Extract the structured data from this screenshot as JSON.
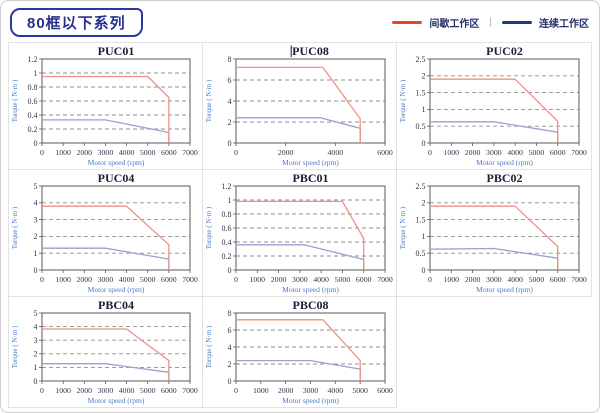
{
  "header": {
    "series_title": "80框以下系列"
  },
  "legend": {
    "intermittent_label": "间歇工作区",
    "separator": "|",
    "continuous_label": "连续工作区",
    "intermittent_color": "#e8462b",
    "continuous_color": "#1e3a78"
  },
  "colors": {
    "curve_red": "#ee9186",
    "curve_blue": "#98a2cc",
    "gridline": "#8f8f8f",
    "plot_border": "#5a5a5a",
    "tick_text": "#33344a",
    "axis_label": "#4a7bc8",
    "title_text": "#1d1d33"
  },
  "axis": {
    "xlabel": "Motor speed (rpm)",
    "ylabel": "Torque ( N·m )"
  },
  "chart_data": [
    {
      "type": "line",
      "title": "PUC01",
      "title_cursor": false,
      "xlabel": "Motor speed (rpm)",
      "ylabel": "Torque ( N·m )",
      "xlim": [
        0,
        7000
      ],
      "xticks": [
        0,
        1000,
        2000,
        3000,
        4000,
        5000,
        6000,
        7000
      ],
      "ylim": [
        0,
        1.2
      ],
      "yticks": [
        0,
        0.2,
        0.4,
        0.6,
        0.8,
        1,
        1.2
      ],
      "series": [
        {
          "name": "间歇工作区",
          "color_key": "curve_red",
          "points": [
            [
              0,
              0.95
            ],
            [
              5000,
              0.95
            ],
            [
              6000,
              0.65
            ],
            [
              6000,
              0
            ]
          ]
        },
        {
          "name": "连续工作区",
          "color_key": "curve_blue",
          "points": [
            [
              0,
              0.33
            ],
            [
              3000,
              0.33
            ],
            [
              6000,
              0.15
            ],
            [
              6000,
              0
            ]
          ]
        }
      ]
    },
    {
      "type": "line",
      "title": "PUC08",
      "title_cursor": true,
      "xlabel": "Motor speed (rpm)",
      "ylabel": "Torque ( N·m )",
      "xlim": [
        0,
        6000
      ],
      "xticks": [
        0,
        2000,
        4000,
        6000
      ],
      "ylim": [
        0,
        8
      ],
      "yticks": [
        0,
        2,
        4,
        6,
        8
      ],
      "series": [
        {
          "name": "间歇工作区",
          "color_key": "curve_red",
          "points": [
            [
              0,
              7.2
            ],
            [
              3500,
              7.2
            ],
            [
              5000,
              2.3
            ],
            [
              5000,
              0
            ]
          ]
        },
        {
          "name": "连续工作区",
          "color_key": "curve_blue",
          "points": [
            [
              0,
              2.4
            ],
            [
              3400,
              2.4
            ],
            [
              5000,
              1.4
            ],
            [
              5000,
              0
            ]
          ]
        }
      ]
    },
    {
      "type": "line",
      "title": "PUC02",
      "title_cursor": false,
      "xlabel": "Motor speed (rpm)",
      "ylabel": "Torque ( N·m )",
      "xlim": [
        0,
        7000
      ],
      "xticks": [
        0,
        1000,
        2000,
        3000,
        4000,
        5000,
        6000,
        7000
      ],
      "ylim": [
        0,
        2.5
      ],
      "yticks": [
        0,
        0.5,
        1,
        1.5,
        2,
        2.5
      ],
      "series": [
        {
          "name": "间歇工作区",
          "color_key": "curve_red",
          "points": [
            [
              0,
              1.9
            ],
            [
              4000,
              1.9
            ],
            [
              6000,
              0.65
            ],
            [
              6000,
              0
            ]
          ]
        },
        {
          "name": "连续工作区",
          "color_key": "curve_blue",
          "points": [
            [
              0,
              0.63
            ],
            [
              3000,
              0.63
            ],
            [
              6000,
              0.32
            ],
            [
              6000,
              0
            ]
          ]
        }
      ]
    },
    {
      "type": "line",
      "title": "PUC04",
      "title_cursor": false,
      "xlabel": "Motor speed (rpm)",
      "ylabel": "Torque ( N·m )",
      "xlim": [
        0,
        7000
      ],
      "xticks": [
        0,
        1000,
        2000,
        3000,
        4000,
        5000,
        6000,
        7000
      ],
      "ylim": [
        0,
        5
      ],
      "yticks": [
        0,
        1,
        2,
        3,
        4,
        5
      ],
      "series": [
        {
          "name": "间歇工作区",
          "color_key": "curve_red",
          "points": [
            [
              0,
              3.8
            ],
            [
              4000,
              3.8
            ],
            [
              6000,
              1.5
            ],
            [
              6000,
              0
            ]
          ]
        },
        {
          "name": "连续工作区",
          "color_key": "curve_blue",
          "points": [
            [
              0,
              1.3
            ],
            [
              3000,
              1.3
            ],
            [
              6000,
              0.65
            ],
            [
              6000,
              0
            ]
          ]
        }
      ]
    },
    {
      "type": "line",
      "title": "PBC01",
      "title_cursor": false,
      "xlabel": "Motor speed (rpm)",
      "ylabel": "Torque ( N·m )",
      "xlim": [
        0,
        7000
      ],
      "xticks": [
        0,
        1000,
        2000,
        3000,
        4000,
        5000,
        6000,
        7000
      ],
      "ylim": [
        0,
        1.2
      ],
      "yticks": [
        0,
        0.2,
        0.4,
        0.6,
        0.8,
        1,
        1.2
      ],
      "series": [
        {
          "name": "间歇工作区",
          "color_key": "curve_red",
          "points": [
            [
              0,
              0.98
            ],
            [
              5000,
              0.98
            ],
            [
              6000,
              0.45
            ],
            [
              6000,
              0
            ]
          ]
        },
        {
          "name": "连续工作区",
          "color_key": "curve_blue",
          "points": [
            [
              0,
              0.36
            ],
            [
              3200,
              0.36
            ],
            [
              6000,
              0.15
            ],
            [
              6000,
              0
            ]
          ]
        }
      ]
    },
    {
      "type": "line",
      "title": "PBC02",
      "title_cursor": false,
      "xlabel": "Motor speed (rpm)",
      "ylabel": "Torque ( N·m )",
      "xlim": [
        0,
        7000
      ],
      "xticks": [
        0,
        1000,
        2000,
        3000,
        4000,
        5000,
        6000,
        7000
      ],
      "ylim": [
        0,
        2.5
      ],
      "yticks": [
        0,
        0.5,
        1,
        1.5,
        2,
        2.5
      ],
      "series": [
        {
          "name": "间歇工作区",
          "color_key": "curve_red",
          "points": [
            [
              0,
              1.9
            ],
            [
              4000,
              1.9
            ],
            [
              6000,
              0.7
            ],
            [
              6000,
              0
            ]
          ]
        },
        {
          "name": "连续工作区",
          "color_key": "curve_blue",
          "points": [
            [
              0,
              0.62
            ],
            [
              3000,
              0.64
            ],
            [
              6000,
              0.35
            ],
            [
              6000,
              0
            ]
          ]
        }
      ]
    },
    {
      "type": "line",
      "title": "PBC04",
      "title_cursor": false,
      "xlabel": "Motor speed (rpm)",
      "ylabel": "Torque ( N·m )",
      "xlim": [
        0,
        7000
      ],
      "xticks": [
        0,
        1000,
        2000,
        3000,
        4000,
        5000,
        6000,
        7000
      ],
      "ylim": [
        0,
        5
      ],
      "yticks": [
        0,
        1,
        2,
        3,
        4,
        5
      ],
      "series": [
        {
          "name": "间歇工作区",
          "color_key": "curve_red",
          "points": [
            [
              0,
              3.82
            ],
            [
              4000,
              3.82
            ],
            [
              6000,
              1.5
            ],
            [
              6000,
              0
            ]
          ]
        },
        {
          "name": "连续工作区",
          "color_key": "curve_blue",
          "points": [
            [
              0,
              1.27
            ],
            [
              3000,
              1.27
            ],
            [
              6000,
              0.64
            ],
            [
              6000,
              0
            ]
          ]
        }
      ]
    },
    {
      "type": "line",
      "title": "PBC08",
      "title_cursor": false,
      "xlabel": "Motor speed (rpm)",
      "ylabel": "Torque ( N·m )",
      "xlim": [
        0,
        6000
      ],
      "xticks": [
        0,
        1000,
        2000,
        3000,
        4000,
        5000,
        6000
      ],
      "ylim": [
        0,
        8
      ],
      "yticks": [
        0,
        2,
        4,
        6,
        8
      ],
      "series": [
        {
          "name": "间歇工作区",
          "color_key": "curve_red",
          "points": [
            [
              0,
              7.2
            ],
            [
              3500,
              7.2
            ],
            [
              5000,
              2.4
            ],
            [
              5000,
              0
            ]
          ]
        },
        {
          "name": "连续工作区",
          "color_key": "curve_blue",
          "points": [
            [
              0,
              2.4
            ],
            [
              3000,
              2.4
            ],
            [
              5000,
              1.4
            ],
            [
              5000,
              0
            ]
          ]
        }
      ]
    }
  ]
}
